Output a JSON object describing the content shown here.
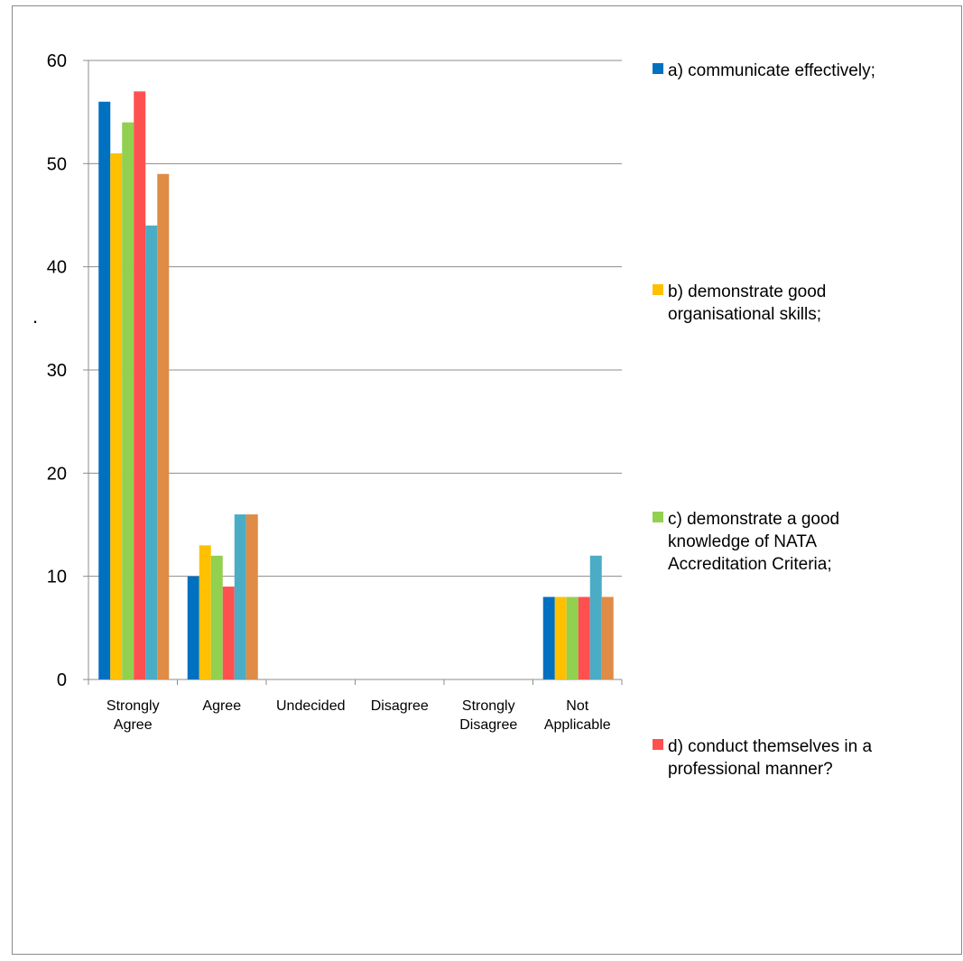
{
  "chart_data": {
    "type": "bar",
    "title": "",
    "xlabel": "",
    "ylabel": ".",
    "ylim": [
      0,
      60
    ],
    "yticks": [
      0,
      10,
      20,
      30,
      40,
      50,
      60
    ],
    "grid": true,
    "legend_position": "right",
    "categories": [
      [
        "Strongly",
        "Agree"
      ],
      [
        "Agree"
      ],
      [
        "Undecided"
      ],
      [
        "Disagree"
      ],
      [
        "Strongly",
        "Disagree"
      ],
      [
        "Not",
        "Applicable"
      ]
    ],
    "series": [
      {
        "name": "a) communicate effectively;",
        "legend_lines": [
          "a) communicate effectively;"
        ],
        "color": "#0070C0",
        "values": [
          56,
          10,
          0,
          0,
          0,
          8
        ]
      },
      {
        "name": "b) demonstrate good organisational skills;",
        "legend_lines": [
          "b) demonstrate good",
          "organisational skills;"
        ],
        "color": "#FFC000",
        "values": [
          51,
          13,
          0,
          0,
          0,
          8
        ]
      },
      {
        "name": "c) demonstrate a good knowledge of NATA Accreditation Criteria;",
        "legend_lines": [
          "c) demonstrate a good",
          "knowledge of NATA",
          "Accreditation Criteria;"
        ],
        "color": "#92D050",
        "values": [
          54,
          12,
          0,
          0,
          0,
          8
        ]
      },
      {
        "name": "d) conduct themselves in a professional manner?",
        "legend_lines": [
          "d) conduct themselves in a",
          "professional manner?"
        ],
        "color": "#FF5050",
        "values": [
          57,
          9,
          0,
          0,
          0,
          8
        ]
      },
      {
        "color": "#4BACC6",
        "values": [
          44,
          16,
          0,
          0,
          0,
          12
        ]
      },
      {
        "color": "#E08B46",
        "values": [
          49,
          16,
          0,
          0,
          0,
          8
        ]
      }
    ]
  }
}
